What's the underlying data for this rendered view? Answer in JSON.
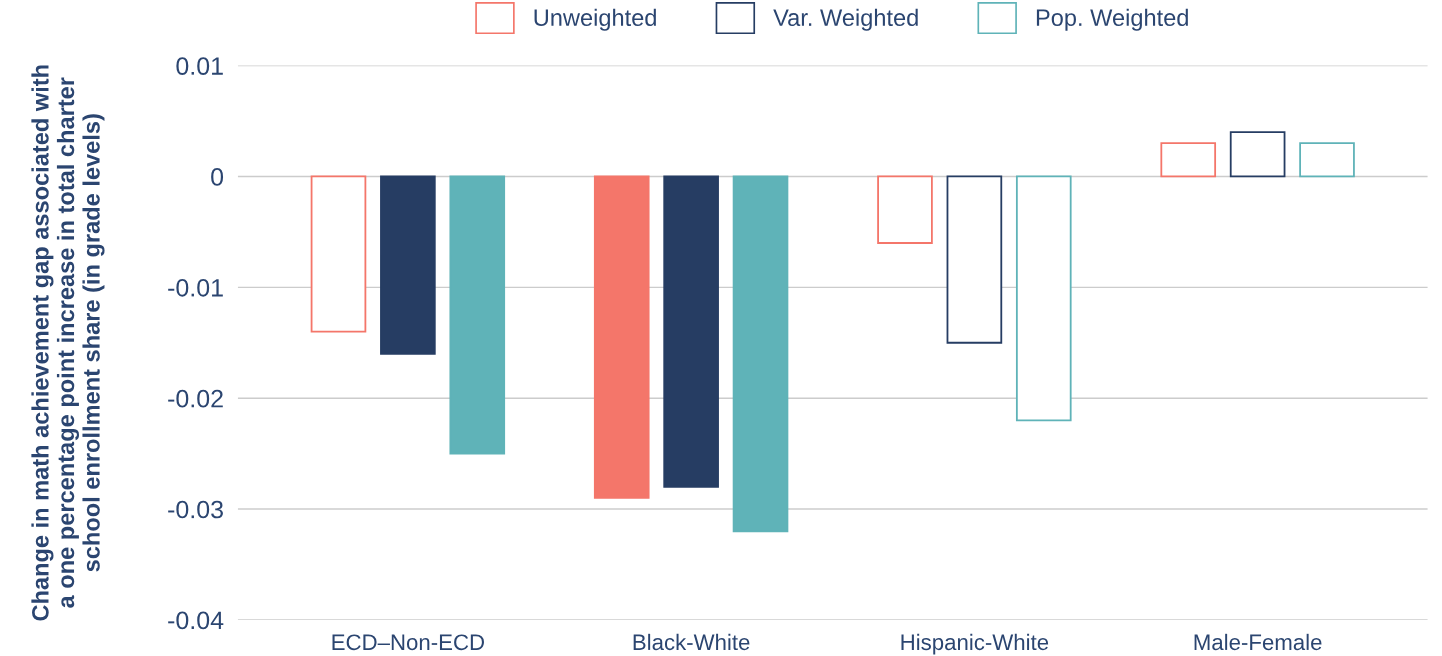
{
  "chart_data": {
    "type": "bar",
    "ylabel": "Change in math achievement gap associated with\na one percentage point increase in total charter\nschool enrollment share (in grade levels)",
    "categories": [
      "ECD–Non-ECD",
      "Black-White",
      "Hispanic-White",
      "Male-Female"
    ],
    "series": [
      {
        "name": "Unweighted",
        "color": "#f4766a",
        "values": [
          -0.014,
          -0.029,
          -0.006,
          0.003
        ],
        "colors": [
          "#ffffff",
          "#f4766a",
          "#ffffff",
          "#ffffff"
        ]
      },
      {
        "name": "Var. Weighted",
        "color": "#263d63",
        "values": [
          -0.016,
          -0.028,
          -0.015,
          0.004
        ],
        "colors": [
          "#263d63",
          "#263d63",
          "#ffffff",
          "#ffffff"
        ]
      },
      {
        "name": "Pop. Weighted",
        "color": "#5fb3b8",
        "values": [
          -0.025,
          -0.032,
          -0.022,
          0.003
        ],
        "colors": [
          "#5fb3b8",
          "#5fb3b8",
          "#ffffff",
          "#ffffff"
        ]
      }
    ],
    "ylim": [
      -0.04,
      0.01
    ],
    "yticks": [
      -0.04,
      -0.03,
      -0.02,
      -0.01,
      0,
      0.01
    ],
    "grid": "y",
    "legend": "top"
  }
}
